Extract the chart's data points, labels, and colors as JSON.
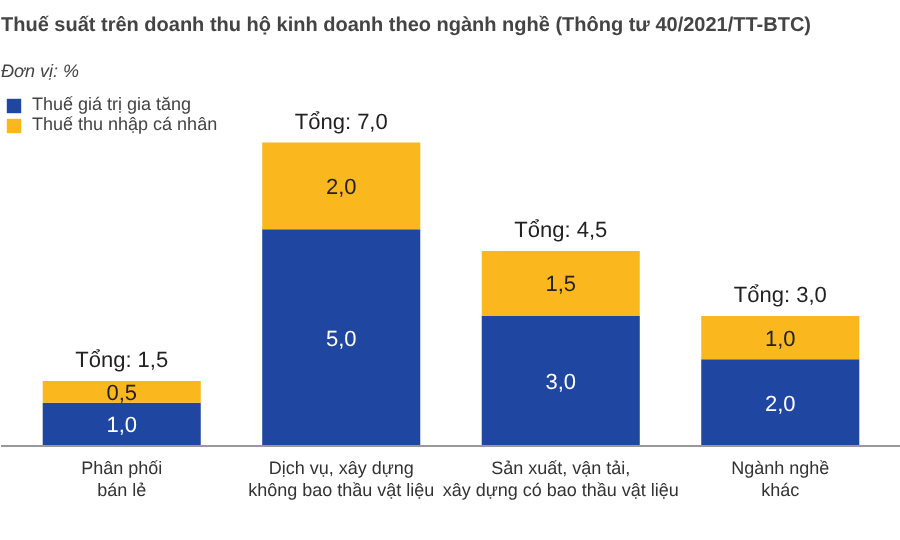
{
  "chart_data": {
    "type": "bar",
    "stacked": true,
    "title": "Thuế suất trên doanh thu hộ kinh doanh theo ngành nghề (Thông tư 40/2021/TT-BTC)",
    "subtitle": "Đơn vị: %",
    "categories": [
      "Phân phối\nbán lẻ",
      "Dịch vụ, xây dựng\nkhông bao thầu vật liệu",
      "Sản xuất, vận tải,\nxây dựng có bao thầu vật liệu",
      "Ngành nghề\nkhác"
    ],
    "series": [
      {
        "name": "Thuế giá trị gia tăng",
        "color": "#1f46a0",
        "values": [
          1.0,
          5.0,
          3.0,
          2.0
        ],
        "value_labels": [
          "1,0",
          "5,0",
          "3,0",
          "2,0"
        ]
      },
      {
        "name": "Thuế thu nhập cá nhân",
        "color": "#fbb81e",
        "values": [
          0.5,
          2.0,
          1.5,
          1.0
        ],
        "value_labels": [
          "0,5",
          "2,0",
          "1,5",
          "1,0"
        ]
      }
    ],
    "totals": [
      "Tổng: 1,5",
      "Tổng: 7,0",
      "Tổng: 4,5",
      "Tổng: 3,0"
    ],
    "legend": "top left",
    "grid": false
  }
}
